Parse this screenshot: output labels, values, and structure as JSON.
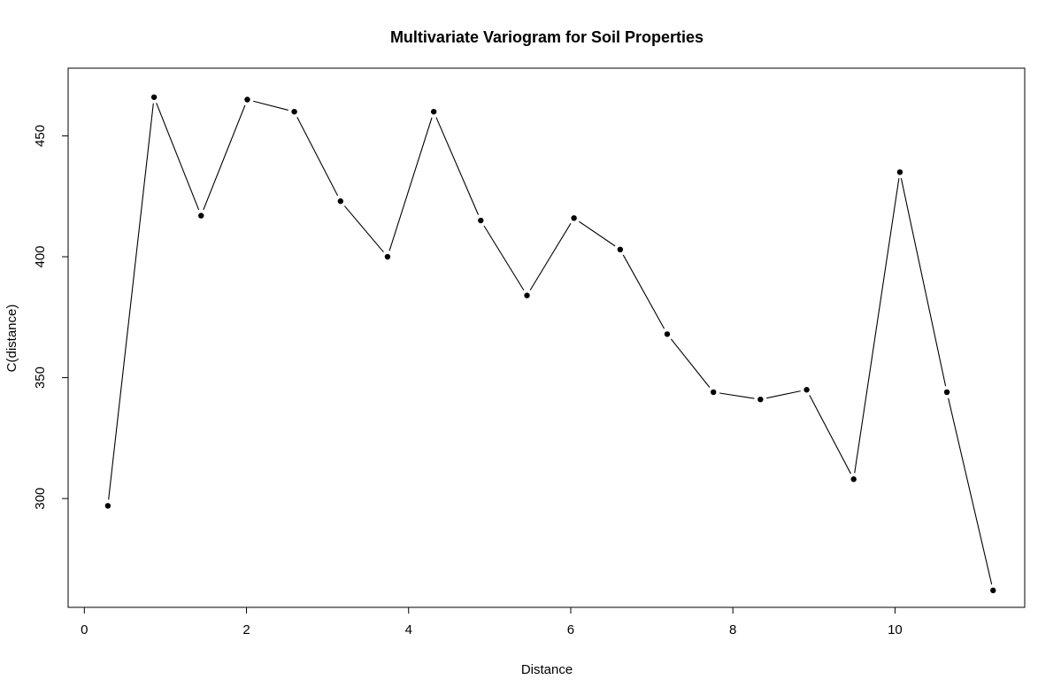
{
  "chart_data": {
    "type": "line",
    "title": "Multivariate Variogram for Soil Properties",
    "xlabel": "Distance",
    "ylabel": "C(distance)",
    "xlim": [
      -0.2,
      11.6
    ],
    "ylim": [
      255,
      478
    ],
    "x_ticks": [
      0,
      2,
      4,
      6,
      8,
      10
    ],
    "y_ticks": [
      300,
      350,
      400,
      450
    ],
    "grid": false,
    "legend": "none",
    "line_color": "#000000",
    "point_color": "#000000",
    "series": [
      {
        "x": [
          0.29,
          0.86,
          1.44,
          2.01,
          2.59,
          3.16,
          3.74,
          4.31,
          4.89,
          5.46,
          6.04,
          6.61,
          7.19,
          7.76,
          8.34,
          8.91,
          9.49,
          10.06,
          10.64,
          11.21
        ],
        "y": [
          297,
          466,
          417,
          465,
          460,
          423,
          400,
          460,
          415,
          384,
          416,
          403,
          368,
          344,
          341,
          345,
          308,
          435,
          344,
          262
        ]
      }
    ]
  }
}
